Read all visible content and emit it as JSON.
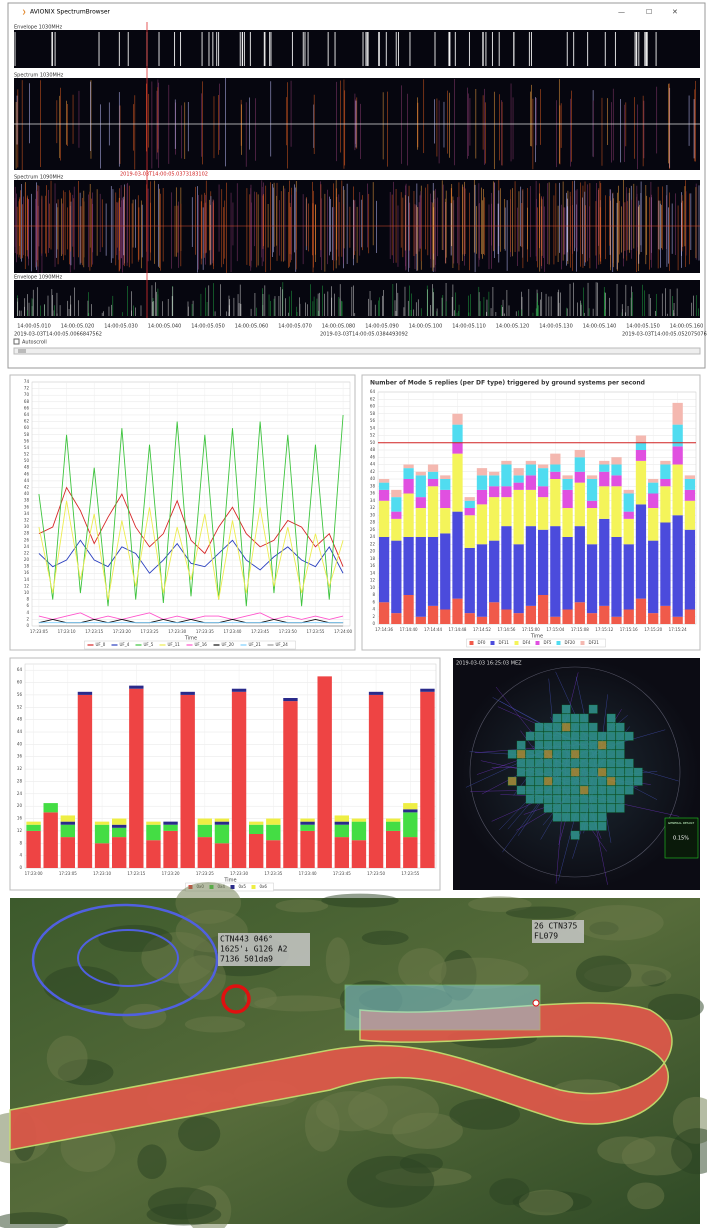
{
  "window": {
    "title": "AVIONIX SpectrumBrowser",
    "panels": [
      "Envelope 1030MHz",
      "Spectrum 1030MHz",
      "Spectrum 1090MHz",
      "Envelope 1090MHz"
    ],
    "cursor_label": "2019-03-03T14:00:05.0373183102",
    "time_ticks": [
      "14:00:05.010",
      "14:00:05.020",
      "14:00:05.030",
      "14:00:05.040",
      "14:00:05.050",
      "14:00:05.060",
      "14:00:05.070",
      "14:00:05.080",
      "14:00:05.090",
      "14:00:05.100",
      "14:00:05.110",
      "14:00:05.120",
      "14:00:05.130",
      "14:00:05.140",
      "14:00:05.150",
      "14:00:05.160"
    ],
    "dates": [
      "2019-03-03T14:00:05.0066847562",
      "2019-03-03T14:00:05.0384493092",
      "2019-03-03T14:00:05.0520750762"
    ],
    "autoscroll": "Autoscroll"
  },
  "chart_data": [
    {
      "type": "line",
      "xlabel": "Time",
      "grid": true,
      "categories": [
        "17:23:05",
        null,
        "17:23:10",
        null,
        "17:23:15",
        null,
        "17:23:20",
        null,
        "17:23:25",
        null,
        "17:23:30",
        null,
        "17:23:35",
        null,
        "17:23:40",
        null,
        "17:23:45",
        null,
        "17:23:50",
        null,
        "17:23:55",
        null,
        "17:24:00"
      ],
      "ylim": [
        0,
        74
      ],
      "yticks": [
        0,
        2,
        4,
        6,
        8,
        10,
        12,
        14,
        16,
        18,
        20,
        22,
        24,
        26,
        28,
        30,
        32,
        34,
        36,
        38,
        40,
        42,
        44,
        46,
        48,
        50,
        52,
        54,
        56,
        58,
        60,
        62,
        64,
        66,
        68,
        70,
        72,
        74
      ],
      "series": [
        {
          "name": "UF_0",
          "color": "#d62728",
          "values": [
            28,
            30,
            42,
            35,
            25,
            33,
            40,
            30,
            24,
            28,
            38,
            26,
            22,
            30,
            36,
            28,
            24,
            26,
            32,
            30,
            24,
            28,
            18
          ]
        },
        {
          "name": "UF_4",
          "color": "#2a3fbf",
          "values": [
            22,
            18,
            20,
            26,
            20,
            18,
            24,
            22,
            16,
            20,
            25,
            19,
            18,
            22,
            26,
            20,
            17,
            21,
            24,
            20,
            18,
            24,
            16
          ]
        },
        {
          "name": "UF_5",
          "color": "#3ec43e",
          "values": [
            40,
            8,
            58,
            10,
            48,
            6,
            60,
            8,
            55,
            7,
            62,
            9,
            58,
            8,
            60,
            6,
            62,
            10,
            58,
            6,
            55,
            8,
            64
          ]
        },
        {
          "name": "UF_11",
          "color": "#ecec50",
          "values": [
            30,
            10,
            38,
            14,
            34,
            8,
            32,
            12,
            36,
            10,
            30,
            14,
            34,
            8,
            32,
            10,
            36,
            12,
            30,
            10,
            28,
            12,
            26
          ]
        },
        {
          "name": "UF_16",
          "color": "#ff55cc",
          "values": [
            3,
            2,
            3,
            4,
            2,
            3,
            2,
            3,
            4,
            2,
            3,
            2,
            3,
            3,
            2,
            3,
            4,
            2,
            3,
            2,
            3,
            2,
            3
          ]
        },
        {
          "name": "UF_20",
          "color": "#111111",
          "values": [
            1,
            2,
            1,
            1,
            2,
            1,
            2,
            1,
            1,
            2,
            1,
            2,
            1,
            1,
            2,
            1,
            1,
            2,
            1,
            1,
            2,
            1,
            1
          ]
        },
        {
          "name": "UF_21",
          "color": "#7fd0ff",
          "values": [
            1,
            1,
            1,
            1,
            1,
            1,
            1,
            1,
            1,
            1,
            1,
            1,
            1,
            1,
            1,
            1,
            1,
            1,
            1,
            1,
            1,
            1,
            1
          ]
        },
        {
          "name": "UF_24",
          "color": "#999999",
          "values": [
            0,
            0,
            0,
            0,
            0,
            0,
            0,
            0,
            0,
            0,
            0,
            0,
            0,
            0,
            0,
            0,
            0,
            0,
            0,
            0,
            0,
            0,
            0
          ]
        }
      ]
    },
    {
      "type": "stacked_bar",
      "title": "Number of Mode S replies (per DF type) triggered by ground systems per second",
      "xlabel": "Time",
      "grid": true,
      "reference_line": 50,
      "reference_color": "#d02020",
      "categories": [
        "17:14:36",
        null,
        "17:14:40",
        null,
        "17:14:44",
        null,
        "17:14:48",
        null,
        "17:14:52",
        null,
        "17:14:56",
        null,
        "17:15:00",
        null,
        "17:15:04",
        null,
        "17:15:08",
        null,
        "17:15:12",
        null,
        "17:15:16",
        null,
        "17:15:20",
        null,
        "17:15:24",
        null
      ],
      "ylim": [
        0,
        64
      ],
      "yticks": [
        0,
        2,
        4,
        6,
        8,
        10,
        12,
        14,
        16,
        18,
        20,
        22,
        24,
        26,
        28,
        30,
        32,
        34,
        36,
        38,
        40,
        42,
        44,
        46,
        48,
        50,
        52,
        54,
        56,
        58,
        60,
        62,
        64
      ],
      "series": [
        {
          "name": "DF0",
          "color": "#f05a4a",
          "values": [
            6,
            3,
            8,
            2,
            5,
            4,
            7,
            3,
            2,
            6,
            4,
            3,
            5,
            8,
            2,
            4,
            6,
            3,
            5,
            2,
            4,
            7,
            3,
            5,
            2,
            4
          ]
        },
        {
          "name": "DF11",
          "color": "#4b4bdc",
          "values": [
            18,
            20,
            16,
            22,
            19,
            21,
            24,
            18,
            20,
            17,
            23,
            19,
            22,
            18,
            25,
            20,
            21,
            19,
            24,
            22,
            18,
            26,
            20,
            23,
            28,
            22
          ]
        },
        {
          "name": "DF4",
          "color": "#f4f45a",
          "values": [
            10,
            6,
            12,
            8,
            14,
            7,
            16,
            9,
            11,
            12,
            8,
            15,
            10,
            9,
            13,
            8,
            12,
            10,
            9,
            14,
            7,
            12,
            9,
            10,
            14,
            8
          ]
        },
        {
          "name": "DF5",
          "color": "#e050e0",
          "values": [
            3,
            2,
            4,
            3,
            2,
            5,
            3,
            2,
            4,
            3,
            3,
            2,
            4,
            3,
            2,
            5,
            3,
            2,
            4,
            3,
            2,
            3,
            4,
            2,
            5,
            3
          ]
        },
        {
          "name": "DF20",
          "color": "#50dcf0",
          "values": [
            2,
            4,
            3,
            6,
            2,
            3,
            5,
            2,
            4,
            3,
            6,
            2,
            3,
            5,
            2,
            3,
            4,
            6,
            2,
            3,
            5,
            2,
            3,
            4,
            6,
            3
          ]
        },
        {
          "name": "DF21",
          "color": "#f4b8b0",
          "values": [
            1,
            2,
            1,
            1,
            2,
            1,
            3,
            1,
            2,
            1,
            1,
            2,
            1,
            1,
            3,
            1,
            2,
            1,
            1,
            2,
            1,
            2,
            1,
            1,
            6,
            1
          ]
        }
      ]
    },
    {
      "type": "stacked_bar",
      "xlabel": "Time",
      "grid": true,
      "categories": [
        "17:23:00",
        null,
        "17:23:05",
        null,
        "17:23:10",
        null,
        "17:23:15",
        null,
        "17:23:20",
        null,
        "17:23:25",
        null,
        "17:23:30",
        null,
        "17:23:35",
        null,
        "17:23:40",
        null,
        "17:23:45",
        null,
        "17:23:50",
        null,
        "17:23:55",
        null
      ],
      "ylim": [
        0,
        66
      ],
      "yticks": [
        0,
        4,
        8,
        12,
        16,
        20,
        24,
        28,
        32,
        36,
        40,
        44,
        48,
        52,
        56,
        60,
        64
      ],
      "series": [
        {
          "name": "0x0",
          "color": "#ee4444",
          "values": [
            12,
            18,
            10,
            56,
            8,
            10,
            58,
            9,
            12,
            56,
            10,
            8,
            57,
            11,
            9,
            54,
            12,
            62,
            10,
            9,
            56,
            12,
            10,
            57
          ]
        },
        {
          "name": "0x4",
          "color": "#44dd44",
          "values": [
            2,
            3,
            4,
            0,
            6,
            3,
            0,
            5,
            2,
            0,
            4,
            6,
            0,
            3,
            5,
            0,
            2,
            0,
            4,
            6,
            0,
            3,
            8,
            0
          ]
        },
        {
          "name": "0x5",
          "color": "#2a2a8a",
          "values": [
            0,
            0,
            1,
            1,
            0,
            1,
            1,
            0,
            1,
            1,
            0,
            1,
            1,
            0,
            0,
            1,
            1,
            0,
            1,
            0,
            1,
            0,
            1,
            1
          ]
        },
        {
          "name": "0x6",
          "color": "#eeee44",
          "values": [
            1,
            0,
            2,
            0,
            1,
            2,
            0,
            1,
            0,
            0,
            2,
            1,
            0,
            1,
            2,
            0,
            1,
            0,
            2,
            1,
            0,
            1,
            2,
            0
          ]
        }
      ]
    }
  ],
  "radar": {
    "timestamp": "2019-03-03 16:25:03 MEZ",
    "result_label": "GENERAL RESULT",
    "result_value": "0.15%"
  },
  "map": {
    "labels": [
      {
        "lines": [
          "CTN443   046°",
          "1625'↓ G126 A2",
          "7136 501da9"
        ]
      },
      {
        "lines": [
          "26 CTN375",
          "FL079"
        ]
      }
    ]
  }
}
